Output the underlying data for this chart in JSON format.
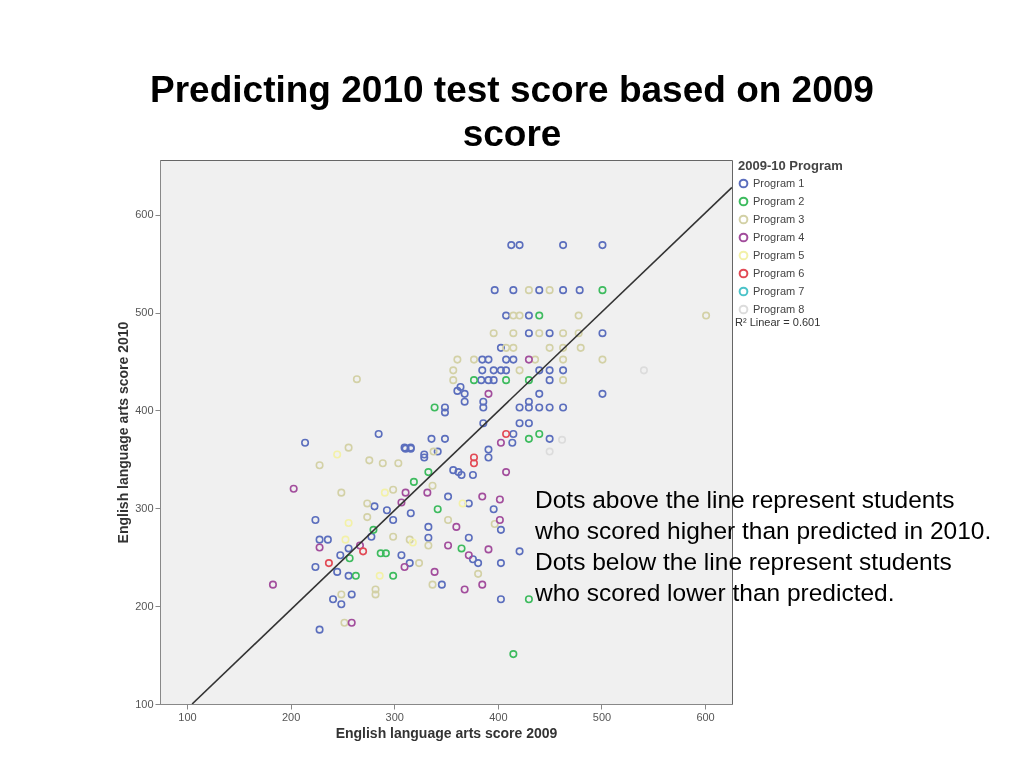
{
  "chart_data": {
    "type": "scatter",
    "title": "Predicting 2010 test score based on 2009 score",
    "xlabel": "English language arts score 2009",
    "ylabel": "English language arts score 2010",
    "legend_title": "2009-10 Program",
    "xlim": [
      74,
      626
    ],
    "ylim": [
      100,
      656
    ],
    "xticks": [
      100,
      200,
      300,
      400,
      500,
      600
    ],
    "yticks": [
      100,
      200,
      300,
      400,
      500,
      600
    ],
    "marker": "circle",
    "legend": "right",
    "annotations": [
      "R² Linear = 0.601",
      "Dots above the line represent students who scored higher than predicted in 2010. Dots below the line represent students who scored lower than predicted."
    ],
    "series": [
      {
        "name": "Program 1",
        "color": "#5b6ebd",
        "x": [
          413,
          421,
          463,
          501,
          397,
          415,
          440,
          463,
          479,
          408,
          430,
          430,
          450,
          501,
          403,
          385,
          391,
          408,
          415,
          385,
          396,
          403,
          408,
          440,
          450,
          463,
          384,
          391,
          396,
          450,
          364,
          368,
          440,
          501,
          368,
          386,
          430,
          349,
          386,
          421,
          430,
          440,
          450,
          463,
          386,
          421,
          430,
          415,
          450,
          336,
          349,
          310,
          316,
          329,
          391,
          362,
          214,
          228,
          403,
          421,
          403,
          346,
          381,
          376,
          372,
          333,
          333,
          403,
          396,
          372,
          352,
          316,
          299,
          293,
          281,
          278,
          256,
          248,
          224,
          228,
          236,
          224,
          245,
          256,
          259,
          241,
          249,
          307,
          315,
          391,
          365,
          376,
          357,
          414,
          342,
          329,
          311,
          316,
          285,
          349,
          361
        ],
        "values": [
          569,
          569,
          569,
          569,
          523,
          523,
          523,
          523,
          523,
          497,
          497,
          479,
          479,
          479,
          464,
          452,
          452,
          452,
          452,
          441,
          441,
          441,
          441,
          441,
          441,
          441,
          431,
          431,
          431,
          431,
          424,
          417,
          417,
          417,
          409,
          409,
          409,
          403,
          403,
          403,
          403,
          403,
          403,
          403,
          387,
          387,
          387,
          376,
          371,
          371,
          371,
          362,
          362,
          352,
          352,
          337,
          367,
          176,
          207,
          256,
          244,
          222,
          244,
          248,
          270,
          270,
          281,
          278,
          299,
          305,
          312,
          295,
          288,
          298,
          302,
          271,
          259,
          252,
          240,
          268,
          268,
          288,
          235,
          231,
          212,
          207,
          202,
          252,
          244,
          360,
          334,
          334,
          339,
          367,
          358,
          355,
          361,
          361,
          376,
          398,
          420
        ]
      },
      {
        "name": "Program 2",
        "color": "#3dbb5e",
        "x": [
          501,
          440,
          377,
          408,
          430,
          339,
          440,
          430,
          333,
          415,
          430,
          365,
          342,
          280,
          257,
          263,
          292,
          287,
          299,
          319
        ],
        "values": [
          523,
          497,
          431,
          431,
          431,
          403,
          376,
          371,
          337,
          151,
          207,
          259,
          299,
          278,
          249,
          231,
          254,
          254,
          231,
          327
        ]
      },
      {
        "name": "Program 3",
        "color": "#d3d1a6",
        "x": [
          430,
          450,
          415,
          421,
          478,
          396,
          415,
          440,
          463,
          478,
          408,
          415,
          450,
          463,
          480,
          361,
          377,
          436,
          463,
          501,
          357,
          421,
          357,
          463,
          601,
          264,
          256,
          228,
          276,
          289,
          304,
          252,
          337,
          299,
          249,
          337,
          352,
          274,
          274,
          299,
          315,
          333,
          282,
          282,
          249,
          324,
          381,
          397,
          338
        ],
        "values": [
          523,
          523,
          497,
          497,
          497,
          479,
          479,
          479,
          479,
          479,
          464,
          464,
          464,
          464,
          464,
          452,
          452,
          452,
          452,
          452,
          441,
          441,
          431,
          431,
          497,
          432,
          362,
          344,
          349,
          346,
          346,
          183,
          222,
          319,
          316,
          323,
          288,
          291,
          305,
          271,
          268,
          262,
          217,
          212,
          212,
          244,
          233,
          284,
          358
        ]
      },
      {
        "name": "Program 4",
        "color": "#a24d9c",
        "x": [
          430,
          391,
          403,
          408,
          203,
          183,
          259,
          385,
          368,
          339,
          391,
          372,
          352,
          360,
          402,
          402,
          385,
          332,
          311,
          307,
          310,
          267,
          228
        ],
        "values": [
          452,
          417,
          367,
          337,
          320,
          222,
          183,
          222,
          217,
          235,
          258,
          252,
          262,
          281,
          309,
          288,
          312,
          316,
          316,
          306,
          240,
          262,
          260
        ]
      },
      {
        "name": "Program 5",
        "color": "#f3f1a8",
        "x": [
          245,
          256,
          253,
          291,
          366,
          286,
          318
        ],
        "values": [
          355,
          285,
          268,
          316,
          305,
          231,
          265
        ]
      },
      {
        "name": "Program 6",
        "color": "#e24a55",
        "x": [
          408,
          377,
          377,
          270,
          237
        ],
        "values": [
          376,
          352,
          346,
          256,
          244
        ]
      },
      {
        "name": "Program 7",
        "color": "#4cc3c9"
      },
      {
        "name": "Program 8",
        "color": "#dcdcdc",
        "x": [
          541,
          462,
          450
        ],
        "values": [
          441,
          370,
          358
        ]
      },
      {
        "type": "line",
        "color": "#333333",
        "line_style": "solid",
        "marker": "none",
        "x": [
          105,
          626
        ],
        "values": [
          100,
          628
        ]
      }
    ]
  }
}
